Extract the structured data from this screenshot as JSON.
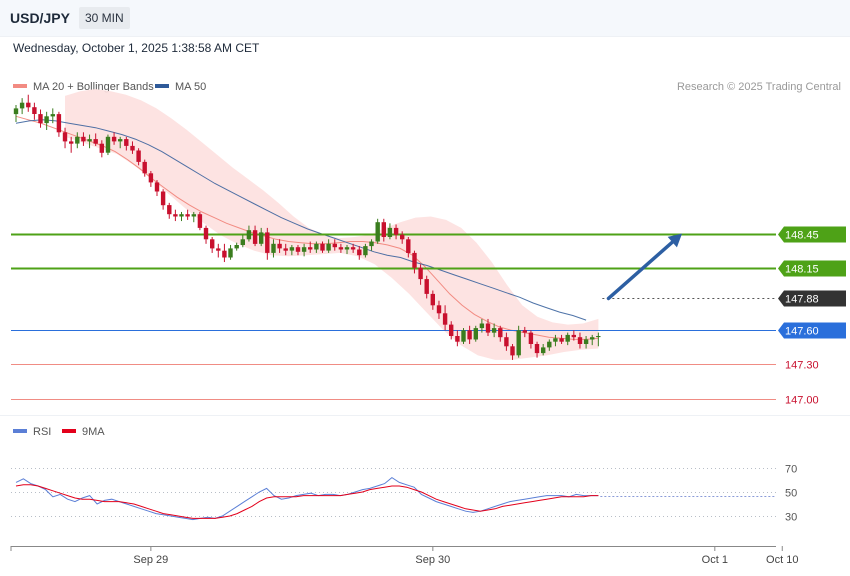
{
  "header": {
    "symbol": "USD/JPY",
    "timeframe": "30 MIN",
    "timestamp": "Wednesday, October 1, 2025 1:38:58 AM CET"
  },
  "legend": {
    "ma20_label": "MA 20 + Bollinger Bands",
    "ma50_label": "MA 50",
    "ma20_color": "#f28b82",
    "ma50_color": "#2f5a99",
    "credit": "Research © 2025 Trading Central"
  },
  "rsi_legend": {
    "rsi_label": "RSI",
    "ma9_label": "9MA",
    "rsi_color": "#5b7fd6",
    "ma9_color": "#e3001b"
  },
  "colors": {
    "up": "#3a7d1e",
    "down": "#c8102e",
    "resistance": "#4ea217",
    "support": "#2a6fdb",
    "target": "#f08c84",
    "current": "#333333",
    "arrow": "#2d5fa3",
    "band": "#fde0df"
  },
  "chart_data": [
    {
      "type": "candlestick",
      "title": "USD/JPY 30 MIN",
      "x_labels": [
        {
          "label": "Sep 29",
          "index": 22
        },
        {
          "label": "Sep 30",
          "index": 68
        },
        {
          "label": "Oct 1",
          "index": 114
        },
        {
          "label": "Oct 10",
          "index": 125
        }
      ],
      "y_range": [
        146.9,
        149.65
      ],
      "ohlc": [
        [
          149.5,
          149.58,
          149.43,
          149.55
        ],
        [
          149.55,
          149.64,
          149.5,
          149.6
        ],
        [
          149.6,
          149.67,
          149.52,
          149.56
        ],
        [
          149.56,
          149.6,
          149.45,
          149.5
        ],
        [
          149.5,
          149.54,
          149.38,
          149.42
        ],
        [
          149.42,
          149.52,
          149.36,
          149.48
        ],
        [
          149.48,
          149.55,
          149.42,
          149.5
        ],
        [
          149.5,
          149.52,
          149.3,
          149.34
        ],
        [
          149.34,
          149.38,
          149.2,
          149.26
        ],
        [
          149.26,
          149.3,
          149.16,
          149.24
        ],
        [
          149.24,
          149.34,
          149.2,
          149.3
        ],
        [
          149.3,
          149.34,
          149.22,
          149.26
        ],
        [
          149.26,
          149.32,
          149.2,
          149.28
        ],
        [
          149.28,
          149.33,
          149.22,
          149.24
        ],
        [
          149.24,
          149.27,
          149.12,
          149.16
        ],
        [
          149.16,
          149.32,
          149.14,
          149.3
        ],
        [
          149.3,
          149.34,
          149.23,
          149.26
        ],
        [
          149.26,
          149.3,
          149.2,
          149.28
        ],
        [
          149.28,
          149.3,
          149.18,
          149.22
        ],
        [
          149.22,
          149.26,
          149.15,
          149.18
        ],
        [
          149.18,
          149.2,
          149.05,
          149.08
        ],
        [
          149.08,
          149.1,
          148.95,
          148.98
        ],
        [
          148.98,
          149.0,
          148.86,
          148.9
        ],
        [
          148.9,
          148.92,
          148.78,
          148.82
        ],
        [
          148.82,
          148.84,
          148.66,
          148.7
        ],
        [
          148.7,
          148.72,
          148.58,
          148.62
        ],
        [
          148.62,
          148.66,
          148.56,
          148.6
        ],
        [
          148.6,
          148.64,
          148.56,
          148.62
        ],
        [
          148.62,
          148.66,
          148.57,
          148.6
        ],
        [
          148.6,
          148.64,
          148.55,
          148.62
        ],
        [
          148.62,
          148.64,
          148.48,
          148.5
        ],
        [
          148.5,
          148.52,
          148.36,
          148.4
        ],
        [
          148.4,
          148.42,
          148.28,
          148.32
        ],
        [
          148.32,
          148.36,
          148.24,
          148.3
        ],
        [
          148.3,
          148.36,
          148.2,
          148.24
        ],
        [
          148.24,
          148.35,
          148.22,
          148.32
        ],
        [
          148.32,
          148.37,
          148.3,
          148.35
        ],
        [
          148.35,
          148.44,
          148.33,
          148.4
        ],
        [
          148.4,
          148.52,
          148.38,
          148.48
        ],
        [
          148.48,
          148.52,
          148.34,
          148.36
        ],
        [
          148.36,
          148.5,
          148.34,
          148.46
        ],
        [
          148.46,
          148.5,
          148.22,
          148.28
        ],
        [
          148.28,
          148.4,
          148.24,
          148.36
        ],
        [
          148.36,
          148.4,
          148.28,
          148.32
        ],
        [
          148.32,
          148.36,
          148.26,
          148.3
        ],
        [
          148.3,
          148.35,
          148.26,
          148.33
        ],
        [
          148.33,
          148.35,
          148.26,
          148.29
        ],
        [
          148.29,
          148.36,
          148.25,
          148.33
        ],
        [
          148.33,
          148.38,
          148.28,
          148.31
        ],
        [
          148.31,
          148.38,
          148.28,
          148.36
        ],
        [
          148.36,
          148.38,
          148.28,
          148.3
        ],
        [
          148.3,
          148.4,
          148.28,
          148.36
        ],
        [
          148.36,
          148.4,
          148.3,
          148.33
        ],
        [
          148.33,
          148.36,
          148.28,
          148.31
        ],
        [
          148.31,
          148.35,
          148.27,
          148.33
        ],
        [
          148.33,
          148.36,
          148.28,
          148.31
        ],
        [
          148.31,
          148.34,
          148.22,
          148.26
        ],
        [
          148.26,
          148.36,
          148.24,
          148.34
        ],
        [
          148.34,
          148.4,
          148.3,
          148.38
        ],
        [
          148.38,
          148.58,
          148.36,
          148.55
        ],
        [
          148.55,
          148.58,
          148.38,
          148.42
        ],
        [
          148.42,
          148.54,
          148.4,
          148.5
        ],
        [
          148.5,
          148.53,
          148.4,
          148.44
        ],
        [
          148.44,
          148.47,
          148.36,
          148.4
        ],
        [
          148.4,
          148.42,
          148.24,
          148.28
        ],
        [
          148.28,
          148.3,
          148.1,
          148.15
        ],
        [
          148.15,
          148.18,
          148.0,
          148.05
        ],
        [
          148.05,
          148.08,
          147.88,
          147.92
        ],
        [
          147.92,
          147.95,
          147.78,
          147.82
        ],
        [
          147.82,
          147.86,
          147.7,
          147.75
        ],
        [
          147.75,
          147.82,
          147.6,
          147.65
        ],
        [
          147.65,
          147.68,
          147.52,
          147.55
        ],
        [
          147.55,
          147.6,
          147.46,
          147.5
        ],
        [
          147.5,
          147.62,
          147.48,
          147.6
        ],
        [
          147.6,
          147.64,
          147.48,
          147.52
        ],
        [
          147.52,
          147.64,
          147.5,
          147.62
        ],
        [
          147.62,
          147.7,
          147.58,
          147.66
        ],
        [
          147.66,
          147.7,
          147.55,
          147.58
        ],
        [
          147.58,
          147.66,
          147.54,
          147.62
        ],
        [
          147.62,
          147.64,
          147.5,
          147.54
        ],
        [
          147.54,
          147.58,
          147.42,
          147.46
        ],
        [
          147.46,
          147.48,
          147.34,
          147.38
        ],
        [
          147.38,
          147.64,
          147.36,
          147.6
        ],
        [
          147.6,
          147.63,
          147.54,
          147.58
        ],
        [
          147.58,
          147.6,
          147.44,
          147.48
        ],
        [
          147.48,
          147.5,
          147.36,
          147.4
        ],
        [
          147.4,
          147.48,
          147.38,
          147.45
        ],
        [
          147.45,
          147.52,
          147.42,
          147.5
        ],
        [
          147.5,
          147.56,
          147.46,
          147.53
        ],
        [
          147.53,
          147.56,
          147.48,
          147.5
        ],
        [
          147.5,
          147.58,
          147.47,
          147.56
        ],
        [
          147.56,
          147.6,
          147.51,
          147.54
        ],
        [
          147.54,
          147.58,
          147.44,
          147.48
        ],
        [
          147.48,
          147.55,
          147.44,
          147.52
        ],
        [
          147.52,
          147.56,
          147.47,
          147.54
        ],
        [
          147.54,
          147.58,
          147.46,
          147.55
        ]
      ],
      "ma20": [
        149.48,
        149.45,
        149.42,
        149.38,
        149.34,
        149.3,
        149.26,
        149.22,
        149.17,
        149.1,
        149.02,
        148.93,
        148.85,
        148.77,
        148.7,
        148.64,
        148.59,
        148.54,
        148.5,
        148.46,
        148.43,
        148.4,
        148.38,
        148.37,
        148.36,
        148.36,
        148.37,
        148.38,
        148.38,
        148.37,
        148.35,
        148.32,
        148.26,
        148.16,
        148.04,
        147.92,
        147.82,
        147.74,
        147.68,
        147.63,
        147.6,
        147.58,
        147.56,
        147.54,
        147.53,
        147.52,
        147.52,
        147.53
      ],
      "ma50": [
        149.42,
        149.44,
        149.45,
        149.44,
        149.42,
        149.4,
        149.38,
        149.35,
        149.32,
        149.28,
        149.23,
        149.17,
        149.1,
        149.03,
        148.96,
        148.89,
        148.83,
        148.77,
        148.71,
        148.65,
        148.59,
        148.54,
        148.49,
        148.45,
        148.41,
        148.37,
        148.33,
        148.29,
        148.26,
        148.24,
        148.2,
        148.17,
        148.13,
        148.09,
        148.05,
        148.01,
        147.97,
        147.93,
        147.89,
        147.84,
        147.8,
        147.76,
        147.73,
        147.69
      ],
      "bb_upper": [
        149.66,
        149.7,
        149.72,
        149.7,
        149.67,
        149.62,
        149.55,
        149.46,
        149.36,
        149.25,
        149.14,
        149.03,
        148.93,
        148.83,
        148.72,
        148.6,
        148.5,
        148.44,
        148.41,
        148.42,
        148.44,
        148.5,
        148.55,
        148.59,
        148.6,
        148.57,
        148.5,
        148.37,
        148.2,
        148.0,
        147.82,
        147.72,
        147.67,
        147.65,
        147.66,
        147.7
      ],
      "bb_lower": [
        149.3,
        149.25,
        149.2,
        149.15,
        149.05,
        148.93,
        148.8,
        148.67,
        148.55,
        148.44,
        148.36,
        148.3,
        148.26,
        148.25,
        148.26,
        148.27,
        148.28,
        148.25,
        148.18,
        148.06,
        147.92,
        147.76,
        147.6,
        147.47,
        147.38,
        147.34,
        147.34,
        147.36,
        147.38,
        147.41,
        147.43,
        147.44
      ],
      "levels": [
        {
          "value": 148.45,
          "label": "148.45",
          "kind": "resistance"
        },
        {
          "value": 148.15,
          "label": "148.15",
          "kind": "resistance"
        },
        {
          "value": 147.88,
          "label": "147.88",
          "kind": "current"
        },
        {
          "value": 147.6,
          "label": "147.60",
          "kind": "support"
        },
        {
          "value": 147.3,
          "label": "147.30",
          "kind": "target"
        },
        {
          "value": 147.0,
          "label": "147.00",
          "kind": "target"
        }
      ],
      "arrow": {
        "from": [
          96,
          147.88
        ],
        "to": [
          108,
          148.45
        ]
      }
    },
    {
      "type": "line",
      "title": "RSI",
      "y_range": [
        10,
        90
      ],
      "ticks": [
        70,
        50,
        30
      ],
      "series": [
        {
          "name": "RSI",
          "values": [
            58,
            61,
            57,
            55,
            52,
            46,
            48,
            44,
            42,
            45,
            47,
            40,
            43,
            44,
            42,
            40,
            38,
            36,
            34,
            32,
            31,
            30,
            29,
            28,
            27,
            28,
            29,
            28,
            30,
            34,
            38,
            42,
            46,
            50,
            53,
            47,
            44,
            45,
            47,
            48,
            49,
            47,
            48,
            48,
            47,
            48,
            50,
            52,
            53,
            55,
            57,
            62,
            58,
            56,
            54,
            48,
            45,
            42,
            40,
            38,
            36,
            34,
            33,
            34,
            36,
            38,
            40,
            42,
            43,
            44,
            45,
            46,
            47,
            47,
            47,
            46,
            48,
            47,
            47,
            47
          ]
        },
        {
          "name": "9MA",
          "values": [
            55,
            56,
            56,
            55,
            53,
            51,
            49,
            47,
            45,
            44,
            44,
            43,
            42,
            42,
            42,
            41,
            40,
            38,
            36,
            34,
            32,
            31,
            30,
            29,
            28,
            28,
            28,
            28,
            29,
            30,
            32,
            35,
            38,
            42,
            45,
            46,
            46,
            46,
            46,
            47,
            47,
            47,
            47,
            47,
            47,
            48,
            49,
            50,
            52,
            53,
            54,
            55,
            55,
            54,
            52,
            50,
            47,
            44,
            42,
            40,
            38,
            36,
            35,
            34,
            35,
            36,
            38,
            39,
            40,
            41,
            42,
            43,
            44,
            45,
            46,
            46,
            46,
            46,
            47,
            47
          ]
        }
      ],
      "x_labels": [
        {
          "label": "Sep 29",
          "index": 22
        },
        {
          "label": "Sep 30",
          "index": 68
        },
        {
          "label": "Oct 1",
          "index": 114
        },
        {
          "label": "Oct 10",
          "index": 125
        }
      ]
    }
  ]
}
